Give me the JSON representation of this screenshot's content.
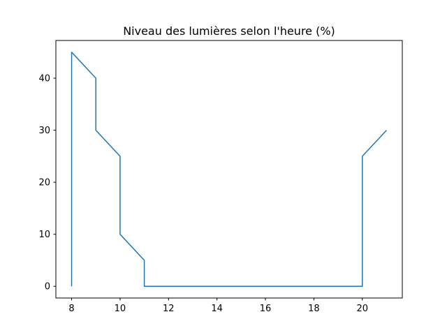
{
  "chart_data": {
    "type": "line",
    "title": "Niveau des lumières selon l'heure (%)",
    "xlabel": "",
    "ylabel": "",
    "xlim": [
      7.35,
      21.65
    ],
    "ylim": [
      -2.25,
      47.25
    ],
    "xticks": [
      8,
      10,
      12,
      14,
      16,
      18,
      20
    ],
    "yticks": [
      0,
      10,
      20,
      30,
      40
    ],
    "grid": false,
    "legend": "none",
    "series": [
      {
        "name": "Niveau des lumières",
        "color": "#1f77b4",
        "x": [
          8,
          8,
          9,
          9,
          10,
          10,
          11,
          11,
          20,
          20,
          21
        ],
        "y": [
          0,
          45,
          40,
          30,
          25,
          10,
          5,
          0,
          0,
          25,
          30
        ]
      }
    ]
  }
}
